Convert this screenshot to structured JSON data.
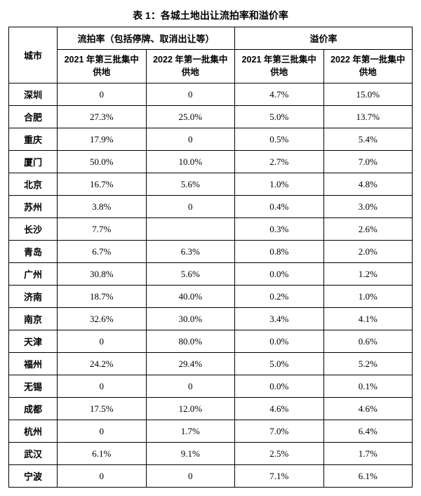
{
  "title": "表 1：各城土地出让流拍率和溢价率",
  "header": {
    "city": "城市",
    "group1": "流拍率（包括停牌、取消出让等）",
    "group2": "溢价率",
    "sub1": "2021 年第三批集中供地",
    "sub2": "2022 年第一批集中供地",
    "sub3": "2021 年第三批集中供地",
    "sub4": "2022 年第一批集中供地"
  },
  "rows": [
    {
      "city": "深圳",
      "a": "0",
      "b": "0",
      "c": "4.7%",
      "d": "15.0%"
    },
    {
      "city": "合肥",
      "a": "27.3%",
      "b": "25.0%",
      "c": "5.0%",
      "d": "13.7%"
    },
    {
      "city": "重庆",
      "a": "17.9%",
      "b": "0",
      "c": "0.5%",
      "d": "5.4%"
    },
    {
      "city": "厦门",
      "a": "50.0%",
      "b": "10.0%",
      "c": "2.7%",
      "d": "7.0%"
    },
    {
      "city": "北京",
      "a": "16.7%",
      "b": "5.6%",
      "c": "1.0%",
      "d": "4.8%"
    },
    {
      "city": "苏州",
      "a": "3.8%",
      "b": "0",
      "c": "0.4%",
      "d": "3.0%"
    },
    {
      "city": "长沙",
      "a": "7.7%",
      "b": "",
      "c": "0.3%",
      "d": "2.6%"
    },
    {
      "city": "青岛",
      "a": "6.7%",
      "b": "6.3%",
      "c": "0.8%",
      "d": "2.0%"
    },
    {
      "city": "广州",
      "a": "30.8%",
      "b": "5.6%",
      "c": "0.0%",
      "d": "1.2%"
    },
    {
      "city": "济南",
      "a": "18.7%",
      "b": "40.0%",
      "c": "0.2%",
      "d": "1.0%"
    },
    {
      "city": "南京",
      "a": "32.6%",
      "b": "30.0%",
      "c": "3.4%",
      "d": "4.1%"
    },
    {
      "city": "天津",
      "a": "0",
      "b": "80.0%",
      "c": "0.0%",
      "d": "0.6%"
    },
    {
      "city": "福州",
      "a": "24.2%",
      "b": "29.4%",
      "c": "5.0%",
      "d": "5.2%"
    },
    {
      "city": "无锡",
      "a": "0",
      "b": "0",
      "c": "0.0%",
      "d": "0.1%"
    },
    {
      "city": "成都",
      "a": "17.5%",
      "b": "12.0%",
      "c": "4.6%",
      "d": "4.6%"
    },
    {
      "city": "杭州",
      "a": "0",
      "b": "1.7%",
      "c": "7.0%",
      "d": "6.4%"
    },
    {
      "city": "武汉",
      "a": "6.1%",
      "b": "9.1%",
      "c": "2.5%",
      "d": "1.7%"
    },
    {
      "city": "宁波",
      "a": "0",
      "b": "0",
      "c": "7.1%",
      "d": "6.1%"
    }
  ]
}
